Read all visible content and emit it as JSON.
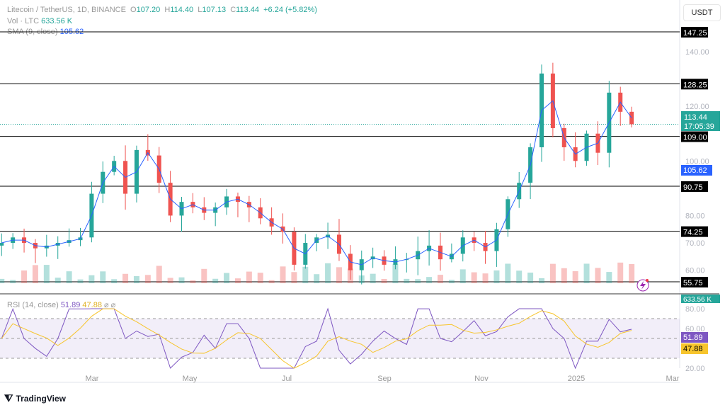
{
  "legend": {
    "symbol": "Litecoin / TetherUS, 1D, BINANCE",
    "o_label": "O",
    "open": "107.20",
    "h_label": "H",
    "high": "114.40",
    "l_label": "L",
    "low": "107.13",
    "c_label": "C",
    "close": "113.44",
    "change": "+6.24 (+5.82%)",
    "vol_label": "Vol · LTC",
    "vol": "633.56 K",
    "sma_label": "SMA (9, close)",
    "sma": "105.62",
    "rsi_label": "RSI (14, close)",
    "rsi": "51.89",
    "rsi_ma": "47.88",
    "rsi_extra": "⌀ ⌀"
  },
  "currency_button": "USDT",
  "brand": "TradingView",
  "colors": {
    "up": "#26a69a",
    "down": "#ef5350",
    "sma": "#2962ff",
    "rsi": "#7e57c2",
    "rsi_ma": "#f7c52d",
    "level": "#000000"
  },
  "chart_data": {
    "type": "candlestick",
    "price_ticks": [
      140,
      120,
      100,
      80,
      70,
      60
    ],
    "levels": [
      147.25,
      128.25,
      109.0,
      90.75,
      74.25,
      55.75
    ],
    "last_price": "113.44",
    "countdown": "17:05:39",
    "sma_value": "105.62",
    "volume_value": "633.56 K",
    "rsi_ticks": [
      80,
      60,
      20
    ],
    "rsi_value": "51.89",
    "rsi_ma_value": "47.88",
    "rsi_band": [
      70,
      30
    ],
    "x_labels": [
      "Mar",
      "May",
      "Jul",
      "Sep",
      "Nov",
      "2025",
      "Mar"
    ],
    "dates": [
      "2024-01-14",
      "2024-01-21",
      "2024-01-28",
      "2024-02-04",
      "2024-02-11",
      "2024-02-18",
      "2024-02-25",
      "2024-03-03",
      "2024-03-10",
      "2024-03-17",
      "2024-03-24",
      "2024-03-31",
      "2024-04-07",
      "2024-04-14",
      "2024-04-21",
      "2024-04-28",
      "2024-05-05",
      "2024-05-12",
      "2024-05-19",
      "2024-05-26",
      "2024-06-02",
      "2024-06-09",
      "2024-06-16",
      "2024-06-23",
      "2024-06-30",
      "2024-07-07",
      "2024-07-14",
      "2024-07-21",
      "2024-07-28",
      "2024-08-04",
      "2024-08-11",
      "2024-08-18",
      "2024-08-25",
      "2024-09-01",
      "2024-09-08",
      "2024-09-15",
      "2024-09-22",
      "2024-09-29",
      "2024-10-06",
      "2024-10-13",
      "2024-10-20",
      "2024-10-27",
      "2024-11-03",
      "2024-11-10",
      "2024-11-17",
      "2024-11-24",
      "2024-12-01",
      "2024-12-08",
      "2024-12-15",
      "2024-12-22",
      "2024-12-29",
      "2025-01-05",
      "2025-01-12",
      "2025-01-19",
      "2025-01-26",
      "2025-02-02",
      "2025-02-09"
    ],
    "close": [
      70,
      72,
      70,
      68,
      69,
      70,
      71,
      72,
      88,
      96,
      100,
      88,
      104,
      102,
      92,
      80,
      85,
      83,
      81,
      83,
      87,
      85,
      83,
      79,
      76,
      74,
      62,
      70,
      72,
      73,
      66,
      60,
      64,
      65,
      62,
      64,
      64,
      67,
      69,
      64,
      66,
      72,
      70,
      67,
      75,
      86,
      92,
      105,
      132,
      112,
      105,
      100,
      110,
      103,
      125,
      118,
      113.44
    ]
  }
}
